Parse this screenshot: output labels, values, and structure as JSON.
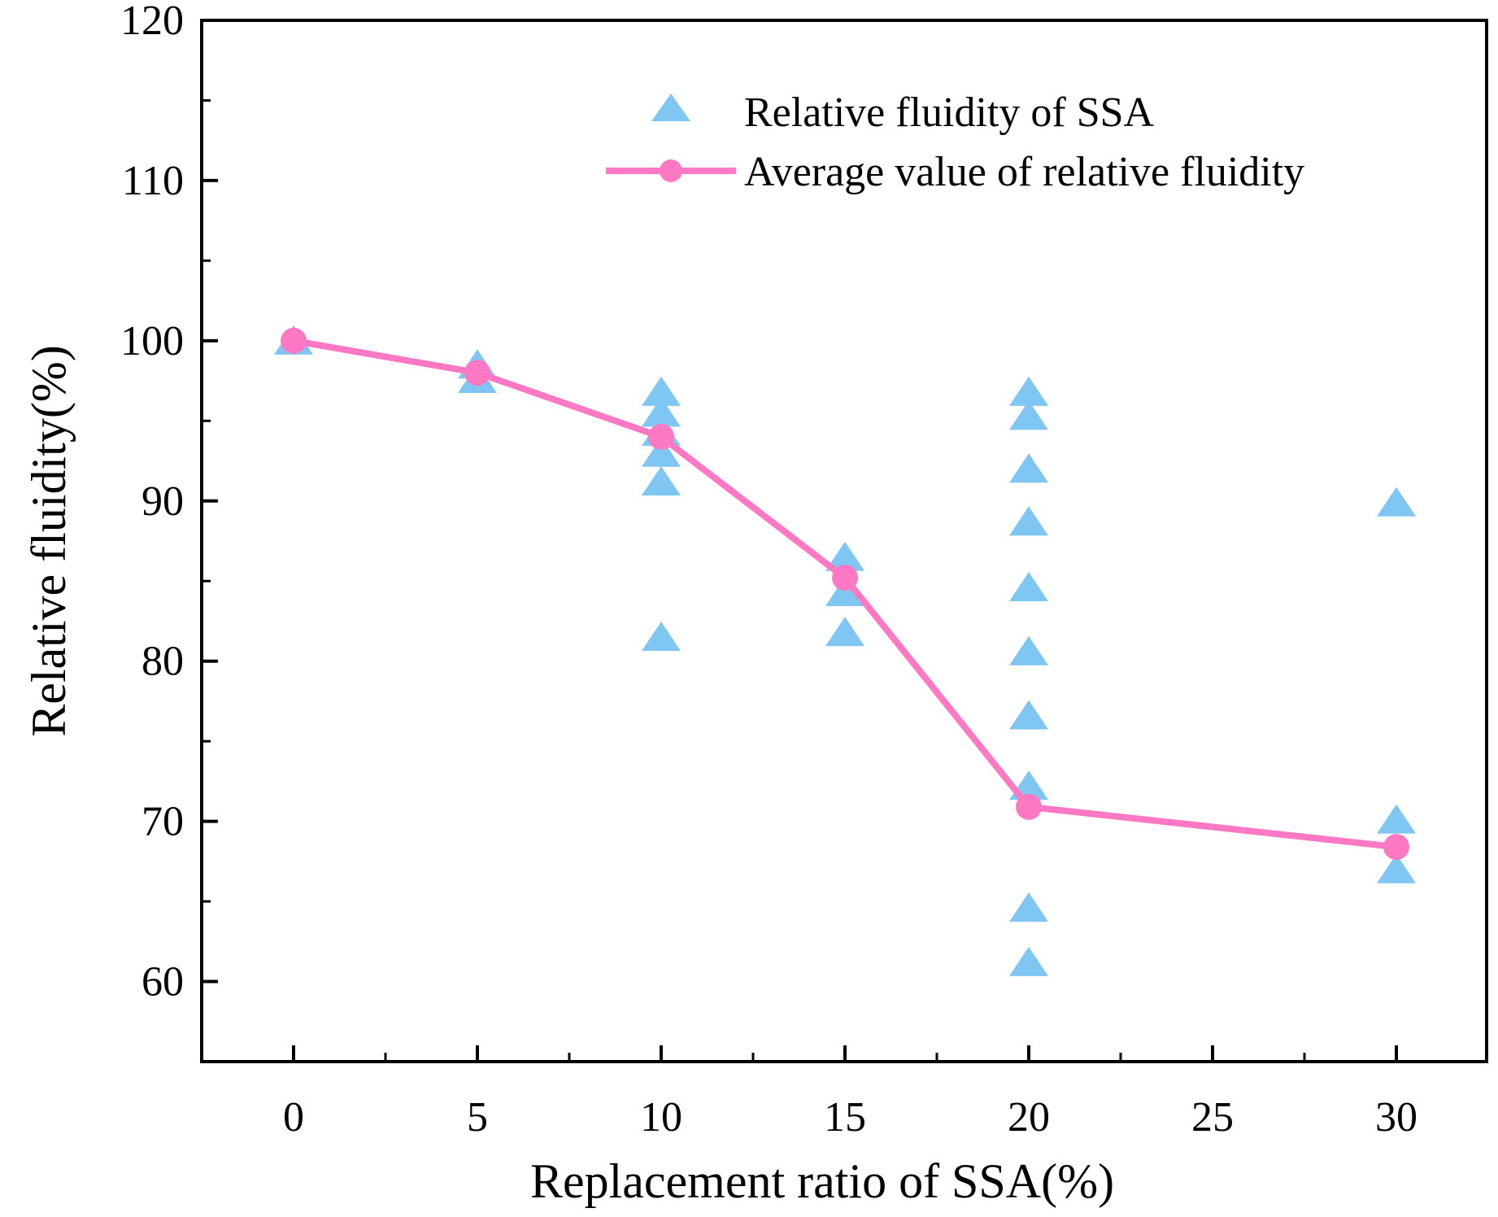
{
  "chart_data": {
    "type": "scatter",
    "xlabel": "Replacement ratio of SSA(%)",
    "ylabel": "Relative fluidity(%)",
    "ylim": [
      55,
      120
    ],
    "x_ticks": [
      0,
      5,
      10,
      15,
      20,
      25,
      30
    ],
    "y_ticks": [
      60,
      70,
      80,
      90,
      100,
      110,
      120
    ],
    "grid": false,
    "legend_position": "top-right",
    "categories": [
      "0",
      "5",
      "10",
      "15",
      "20",
      "30"
    ],
    "series": [
      {
        "name": "Relative fluidity of SSA",
        "kind": "scatter",
        "marker": "triangle",
        "color": "#7fc6f2",
        "points": [
          {
            "x": "0",
            "y": 100
          },
          {
            "x": "5",
            "y": 98.5
          },
          {
            "x": "5",
            "y": 97.6
          },
          {
            "x": "10",
            "y": 96.8
          },
          {
            "x": "10",
            "y": 95.5
          },
          {
            "x": "10",
            "y": 94.3
          },
          {
            "x": "10",
            "y": 93.0
          },
          {
            "x": "10",
            "y": 91.2
          },
          {
            "x": "10",
            "y": 81.5
          },
          {
            "x": "15",
            "y": 86.5
          },
          {
            "x": "15",
            "y": 84.3
          },
          {
            "x": "15",
            "y": 81.8
          },
          {
            "x": "20",
            "y": 96.8
          },
          {
            "x": "20",
            "y": 95.3
          },
          {
            "x": "20",
            "y": 92.0
          },
          {
            "x": "20",
            "y": 88.7
          },
          {
            "x": "20",
            "y": 84.6
          },
          {
            "x": "20",
            "y": 80.6
          },
          {
            "x": "20",
            "y": 76.6
          },
          {
            "x": "20",
            "y": 72.2
          },
          {
            "x": "20",
            "y": 64.6
          },
          {
            "x": "20",
            "y": 61.2
          },
          {
            "x": "30",
            "y": 89.9
          },
          {
            "x": "30",
            "y": 70.1
          },
          {
            "x": "30",
            "y": 67.0
          }
        ]
      },
      {
        "name": "Average value of relative fluidity",
        "kind": "line",
        "marker": "circle",
        "color": "#ff78c4",
        "points": [
          {
            "x": "0",
            "y": 100
          },
          {
            "x": "5",
            "y": 98
          },
          {
            "x": "10",
            "y": 94
          },
          {
            "x": "15",
            "y": 85.2
          },
          {
            "x": "20",
            "y": 70.9
          },
          {
            "x": "30",
            "y": 68.4
          }
        ]
      }
    ]
  }
}
